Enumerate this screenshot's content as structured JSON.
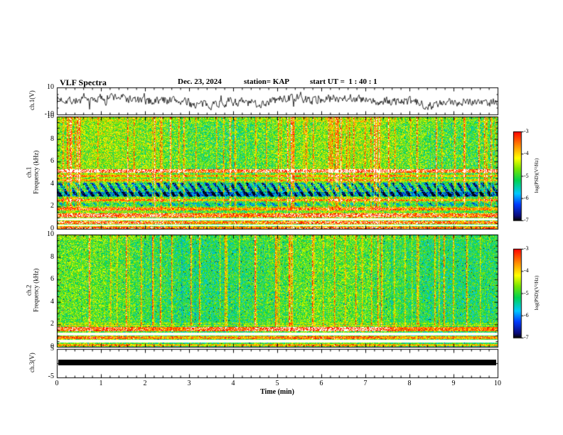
{
  "header": {
    "title": "VLF Spectra",
    "date": "Dec. 23, 2024",
    "station": "station= KAP",
    "start_ut": "start UT =  1 : 40 : 1"
  },
  "panel_ch1_wave": {
    "ylabel": "ch.1(V)",
    "ytick_top": "10",
    "ytick_bottom": "-10"
  },
  "panel_ch1_spec": {
    "ylabel_line1": "ch.1",
    "ylabel_line2": "Frequency (kHz)",
    "yticks": [
      "10",
      "8",
      "6",
      "4",
      "2",
      "0"
    ]
  },
  "panel_ch2_spec": {
    "ylabel_line1": "ch.2",
    "ylabel_line2": "Frequency (kHz)",
    "yticks": [
      "10",
      "8",
      "6",
      "4",
      "2",
      "0"
    ]
  },
  "panel_ch3": {
    "ylabel": "ch.3(V)",
    "ytick_top": "5",
    "ytick_bottom": "-5"
  },
  "xaxis": {
    "label": "Time (min)",
    "ticks": [
      "0",
      "1",
      "2",
      "3",
      "4",
      "5",
      "6",
      "7",
      "8",
      "9",
      "10"
    ]
  },
  "colorbars": [
    {
      "label": "log(PSD)(V²/Hz)",
      "ticks": [
        "-3",
        "-4",
        "-5",
        "-6",
        "-7"
      ]
    },
    {
      "label": "log(PSD)(V²/Hz)",
      "ticks": [
        "-3",
        "-4",
        "-5",
        "-6",
        "-7"
      ]
    }
  ],
  "chart_data": [
    {
      "type": "line",
      "name": "ch1-waveform",
      "ylabel": "ch.1(V)",
      "ylim": [
        -10,
        10
      ],
      "xlim": [
        0,
        10
      ],
      "description": "continuous noisy broadband black time-series oscillating roughly ±6 V about 0 for the full 10 minutes"
    },
    {
      "type": "heatmap",
      "name": "ch1-spectrogram",
      "ylabel": "ch.1 Frequency (kHz)",
      "ylim": [
        0,
        10
      ],
      "xlim": [
        0,
        10
      ],
      "zlabel": "log(PSD)(V²/Hz)",
      "zlim": [
        -7,
        -3
      ],
      "zticks": [
        -3,
        -4,
        -5,
        -6,
        -7
      ],
      "palette_hex": [
        "#ff0000",
        "#ff8c00",
        "#ffff00",
        "#78e600",
        "#00d250",
        "#00c8ff",
        "#003cff",
        "#0a0a78",
        "#050505"
      ],
      "palette_note": "jet-like: red = high PSD (-3), blue/black = low PSD (-7)",
      "features": [
        "yellow-green mottled background with dense red vertical impulsive streaks spanning ~2-10 kHz",
        "solid red horizontal line near 5.2 kHz",
        "orange-red lines near 4.4 and 4.8 kHz",
        "dark blue/black dashed absorption band between ~3 and 4 kHz",
        "red horizontal bands near 1.8 and 1.2 kHz",
        "saturated white bands near 0.9 and 0.35 kHz",
        "red lines near 0.6 and 0.15 kHz"
      ]
    },
    {
      "type": "heatmap",
      "name": "ch2-spectrogram",
      "ylabel": "ch.2 Frequency (kHz)",
      "ylim": [
        0,
        10
      ],
      "xlim": [
        0,
        10
      ],
      "zlabel": "log(PSD)(V²/Hz)",
      "zlim": [
        -7,
        -3
      ],
      "zticks": [
        -3,
        -4,
        -5,
        -6,
        -7
      ],
      "palette_hex": [
        "#ff0000",
        "#ff8c00",
        "#ffff00",
        "#78e600",
        "#00d250",
        "#00c8ff",
        "#003cff",
        "#0a0a78",
        "#050505"
      ],
      "features": [
        "greener smoother mottled background with sparser red vertical streaks",
        "thick red band ~1.45-1.8 kHz, most intense mid-record",
        "orange line near 1.9 kHz",
        "saturated white band near 1.1 kHz",
        "red line near 0.85 kHz",
        "pale band near 0.5 kHz",
        "red line near 0.2 kHz",
        "scattered blue-cyan speckles"
      ]
    },
    {
      "type": "line",
      "name": "ch3-trace",
      "ylabel": "ch.3(V)",
      "ylim": [
        -5,
        5
      ],
      "xlim": [
        0,
        10
      ],
      "description": "flat saturated thick black trace near 0 V across the entire record"
    }
  ]
}
